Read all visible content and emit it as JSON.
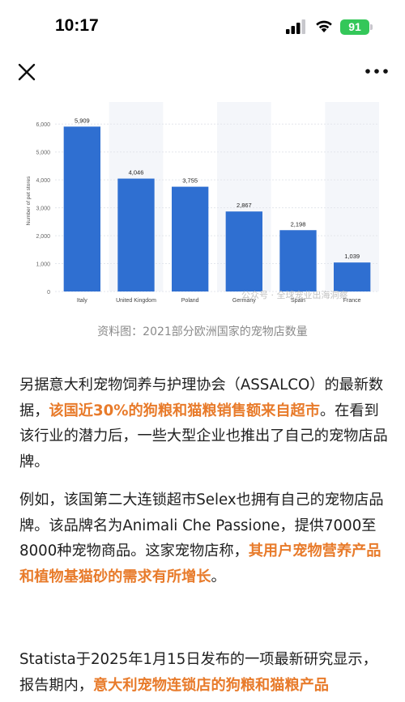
{
  "status_bar": {
    "time": "10:17",
    "battery": "91"
  },
  "chart_data": {
    "type": "bar",
    "categories": [
      "Italy",
      "United Kingdom",
      "Poland",
      "Germany",
      "Spain",
      "France"
    ],
    "values": [
      5909,
      4046,
      3755,
      2867,
      2198,
      1039
    ],
    "value_labels": [
      "5,909",
      "4,046",
      "3,755",
      "2,867",
      "2,198",
      "1,039"
    ],
    "ylabel": "Number of pet stores",
    "ylim": [
      0,
      6500
    ],
    "yticks": [
      0,
      1000,
      2000,
      3000,
      4000,
      5000,
      6000
    ],
    "ytick_labels": [
      "0",
      "1,000",
      "2,000",
      "3,000",
      "4,000",
      "5,000",
      "6,000"
    ],
    "bar_color": "#2f6fd1",
    "grid": true
  },
  "watermark": "公众号 · 全球宠业出海洞察",
  "caption": "资料图：2021部分欧洲国家的宠物店数量",
  "accent_color": "#e87b2b",
  "paragraphs": {
    "p1": {
      "a": "另据意大利宠物饲养与护理协会（ASSALCO）的最新数据，",
      "hl": "该国近30%的狗粮和猫粮销售额来自超市",
      "b": "。在看到该行业的潜力后，一些大型企业也推出了自己的宠物店品牌。"
    },
    "p2": {
      "a": "例如，该国第二大连锁超市Selex也拥有自己的宠物店品牌。该品牌名为Animali Che Passione，提供7000至8000种宠物商品。这家宠物店称，",
      "hl": "其用户宠物营养产品和植物基猫砂的需求有所增长",
      "b": "。"
    },
    "p3": {
      "a": "Statista于2025年1月15日发布的一项最新研究显示，报告期内，",
      "hl": "意大利宠物连锁店的狗粮和猫粮产品"
    }
  }
}
